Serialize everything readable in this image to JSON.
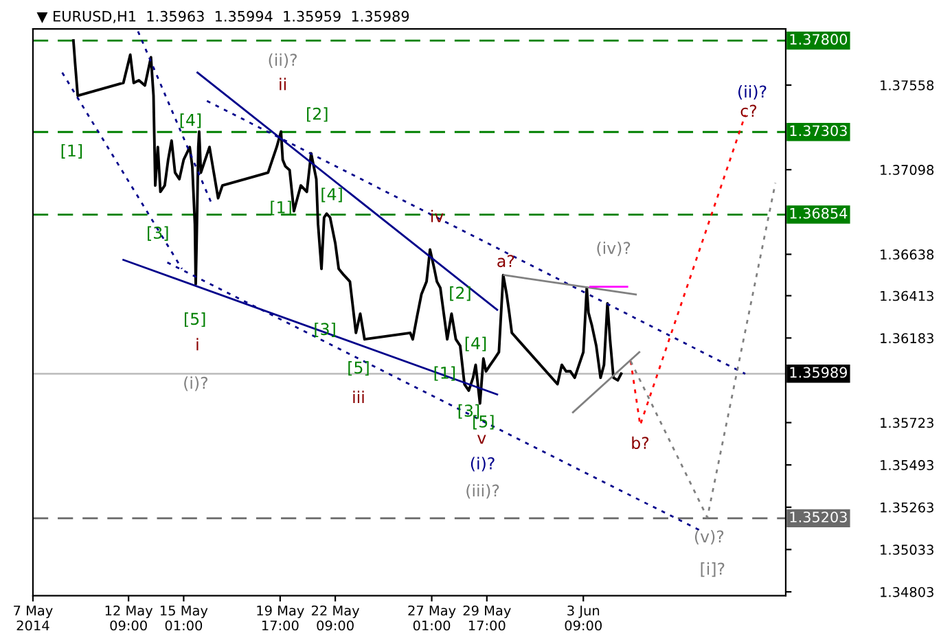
{
  "chart_data": {
    "type": "line",
    "title": "▼ EURUSD,H1  1.35963  1.35994  1.35959  1.35989",
    "xlim": [
      "2014-05-07T18:00",
      "2014-06-13T04:00"
    ],
    "ylim": [
      1.34782,
      1.37863
    ],
    "xticks": [
      {
        "value": "2014-05-07T18:00",
        "label": "7 May 2014"
      },
      {
        "value": "2014-05-12T09:00",
        "label": "12 May 09:00"
      },
      {
        "value": "2014-05-15T01:00",
        "label": "15 May 01:00"
      },
      {
        "value": "2014-05-19T17:00",
        "label": "19 May 17:00"
      },
      {
        "value": "2014-05-22T09:00",
        "label": "22 May 09:00"
      },
      {
        "value": "2014-05-27T01:00",
        "label": "27 May 01:00"
      },
      {
        "value": "2014-05-29T17:00",
        "label": "29 May 17:00"
      },
      {
        "value": "2014-06-03T09:00",
        "label": "3 Jun 09:00"
      }
    ],
    "yticks": [
      1.37558,
      1.37098,
      1.36638,
      1.36413,
      1.36183,
      1.35723,
      1.35493,
      1.35263,
      1.35033,
      1.34803
    ],
    "series": [
      {
        "color": "#000000",
        "line_style": "solid",
        "x": [
          "2014-05-09T17:00",
          "2014-05-09T19:00",
          "2014-05-09T22:00",
          "2014-05-12T03:00",
          "2014-05-12T11:00",
          "2014-05-12T15:00",
          "2014-05-12T21:00",
          "2014-05-13T04:00",
          "2014-05-13T11:00",
          "2014-05-13T14:00",
          "2014-05-13T16:00",
          "2014-05-13T19:00",
          "2014-05-13T22:00",
          "2014-05-14T03:00",
          "2014-05-14T07:00",
          "2014-05-14T11:00",
          "2014-05-14T15:00",
          "2014-05-14T20:00",
          "2014-05-15T01:00",
          "2014-05-15T08:00",
          "2014-05-15T11:00",
          "2014-05-15T14:00",
          "2014-05-15T15:00",
          "2014-05-15T16:00",
          "2014-05-15T18:00",
          "2014-05-15T19:00",
          "2014-05-15T21:00",
          "2014-05-16T02:00",
          "2014-05-16T07:00",
          "2014-05-16T12:00",
          "2014-05-16T17:00",
          "2014-05-16T22:00",
          "2014-05-19T03:00",
          "2014-05-19T08:00",
          "2014-05-19T13:00",
          "2014-05-19T18:00",
          "2014-05-19T20:00",
          "2014-05-19T23:00",
          "2014-05-20T04:00",
          "2014-05-20T09:00",
          "2014-05-20T13:00",
          "2014-05-20T17:00",
          "2014-05-21T00:00",
          "2014-05-21T05:00",
          "2014-05-21T11:00",
          "2014-05-21T13:00",
          "2014-05-21T17:00",
          "2014-05-21T20:00",
          "2014-05-21T23:00",
          "2014-05-22T03:00",
          "2014-05-22T09:00",
          "2014-05-22T13:00",
          "2014-05-22T19:00",
          "2014-05-23T02:00",
          "2014-05-23T09:00",
          "2014-05-23T14:00",
          "2014-05-23T19:00",
          "2014-05-26T00:00",
          "2014-05-26T03:00",
          "2014-05-26T08:00",
          "2014-05-26T13:00",
          "2014-05-26T19:00",
          "2014-05-26T23:00",
          "2014-05-27T04:00",
          "2014-05-27T07:00",
          "2014-05-27T11:00",
          "2014-05-27T14:00",
          "2014-05-27T19:00",
          "2014-05-28T00:00",
          "2014-05-28T05:00",
          "2014-05-28T10:00",
          "2014-05-28T15:00",
          "2014-05-28T20:00",
          "2014-05-29T01:00",
          "2014-05-29T04:00",
          "2014-05-29T09:00",
          "2014-05-29T13:00",
          "2014-05-29T16:00",
          "2014-05-29T21:00",
          "2014-05-30T02:00",
          "2014-05-30T07:00",
          "2014-05-30T12:00",
          "2014-05-30T16:00",
          "2014-05-30T19:00",
          "2014-05-30T22:00",
          "2014-06-02T03:00",
          "2014-06-02T08:00",
          "2014-06-02T13:00",
          "2014-06-02T18:00",
          "2014-06-02T23:00",
          "2014-06-03T04:00",
          "2014-06-03T09:00",
          "2014-06-03T13:00",
          "2014-06-03T15:00",
          "2014-06-03T19:00",
          "2014-06-04T00:00",
          "2014-06-04T05:00",
          "2014-06-04T09:00",
          "2014-06-04T13:00",
          "2014-06-04T16:00",
          "2014-06-04T20:00",
          "2014-06-05T01:00",
          "2014-06-05T05:00"
        ],
        "values": [
          1.378,
          1.37675,
          1.375,
          1.3757,
          1.37723,
          1.3757,
          1.37584,
          1.37556,
          1.37709,
          1.375,
          1.37012,
          1.37221,
          1.36978,
          1.37012,
          1.37152,
          1.37256,
          1.37082,
          1.37047,
          1.37152,
          1.37221,
          1.37117,
          1.36803,
          1.36476,
          1.36699,
          1.37221,
          1.37305,
          1.37082,
          1.37152,
          1.37221,
          1.37082,
          1.36943,
          1.37012,
          1.37082,
          1.37152,
          1.37221,
          1.37305,
          1.37152,
          1.37117,
          1.37096,
          1.36873,
          1.36943,
          1.37012,
          1.36978,
          1.37187,
          1.37047,
          1.36803,
          1.36559,
          1.36838,
          1.36859,
          1.36838,
          1.36699,
          1.36559,
          1.36525,
          1.3649,
          1.36211,
          1.36315,
          1.36176,
          1.36211,
          1.36176,
          1.36301,
          1.3642,
          1.3649,
          1.36664,
          1.36559,
          1.3649,
          1.36455,
          1.3635,
          1.36176,
          1.36315,
          1.36176,
          1.36141,
          1.35932,
          1.35897,
          1.35967,
          1.36037,
          1.35827,
          1.36071,
          1.36002,
          1.36037,
          1.36071,
          1.36106,
          1.36525,
          1.3642,
          1.3632,
          1.36211,
          1.35932,
          1.36037,
          1.36002,
          1.36002,
          1.35967,
          1.36037,
          1.36106,
          1.36455,
          1.3632,
          1.3625,
          1.36141,
          1.35967,
          1.36037,
          1.36371,
          1.36176,
          1.35967,
          1.35953,
          1.35989
        ]
      },
      {
        "color": "#00008b",
        "line_style": "solid",
        "x": [
          "2014-05-15T17:00",
          "2014-05-30T05:00"
        ],
        "values": [
          1.37626,
          1.36336
        ]
      },
      {
        "color": "#00008b",
        "line_style": "solid",
        "x": [
          "2014-05-12T03:00",
          "2014-05-30T05:00"
        ],
        "values": [
          1.36608,
          1.35876
        ]
      },
      {
        "color": "#00008b",
        "line_style": "dotted",
        "x": [
          "2014-05-16T04:00",
          "2014-06-11T05:00"
        ],
        "values": [
          1.37472,
          1.35988
        ]
      },
      {
        "color": "#00008b",
        "line_style": "dotted",
        "x": [
          "2014-05-14T06:00",
          "2014-06-09T03:00"
        ],
        "values": [
          1.36594,
          1.35131
        ]
      },
      {
        "color": "#00008b",
        "line_style": "dotted",
        "x": [
          "2014-05-09T04:00",
          "2014-05-14T23:00"
        ],
        "values": [
          1.37626,
          1.36559
        ]
      },
      {
        "color": "#00008b",
        "line_style": "dotted",
        "x": [
          "2014-05-12T20:00",
          "2014-05-16T10:00"
        ],
        "values": [
          1.3785,
          1.36908
        ]
      },
      {
        "color": "#808080",
        "line_style": "solid",
        "x": [
          "2014-05-30T13:00",
          "2014-06-05T22:00"
        ],
        "values": [
          1.36525,
          1.3642
        ]
      },
      {
        "color": "#ff00ff",
        "line_style": "solid",
        "x": [
          "2014-06-03T17:00",
          "2014-06-05T12:00"
        ],
        "values": [
          1.36462,
          1.36462
        ]
      },
      {
        "color": "#808080",
        "line_style": "solid",
        "x": [
          "2014-06-02T21:00",
          "2014-06-06T02:00"
        ],
        "values": [
          1.35779,
          1.36106
        ]
      },
      {
        "color": "#ff0000",
        "line_style": "dotted",
        "x": [
          "2014-06-05T16:00",
          "2014-06-06T03:00",
          "2014-06-11T05:00"
        ],
        "values": [
          1.36057,
          1.35709,
          1.37396
        ]
      },
      {
        "color": "#808080",
        "line_style": "dotted",
        "x": [
          "2014-06-05T16:00",
          "2014-06-09T09:00",
          "2014-06-12T16:00"
        ],
        "values": [
          1.36057,
          1.35207,
          1.37026
        ]
      }
    ],
    "ref_lines": [
      {
        "axis": "y",
        "value": 1.378,
        "label": "1.37800",
        "color": "#008000",
        "line_style": "dashed"
      },
      {
        "axis": "y",
        "value": 1.37303,
        "label": "1.37303",
        "color": "#008000",
        "line_style": "dashed"
      },
      {
        "axis": "y",
        "value": 1.36854,
        "label": "1.36854",
        "color": "#008000",
        "line_style": "dashed"
      },
      {
        "axis": "y",
        "value": 1.35203,
        "label": "1.35203",
        "color": "#696969",
        "line_style": "dashed"
      },
      {
        "axis": "y",
        "value": 1.35989,
        "label": "1.35989",
        "color": "#c0c0c0",
        "line_style": "solid"
      }
    ],
    "annotations": [
      "[1]",
      "[4]",
      "[3]",
      "[5]",
      "i",
      "(i)?",
      "(ii)?",
      "ii",
      "[2]",
      "[1]",
      "[4]",
      "iv",
      "[3]",
      "[5]",
      "iii",
      "[2]",
      "[1]",
      "[4]",
      "[3]",
      "[5]",
      "v",
      "(i)?",
      "(iii)?",
      "a?",
      "(iv)?",
      "b?",
      "(v)?",
      "[i]?",
      "(ii)?",
      "c?"
    ]
  }
}
